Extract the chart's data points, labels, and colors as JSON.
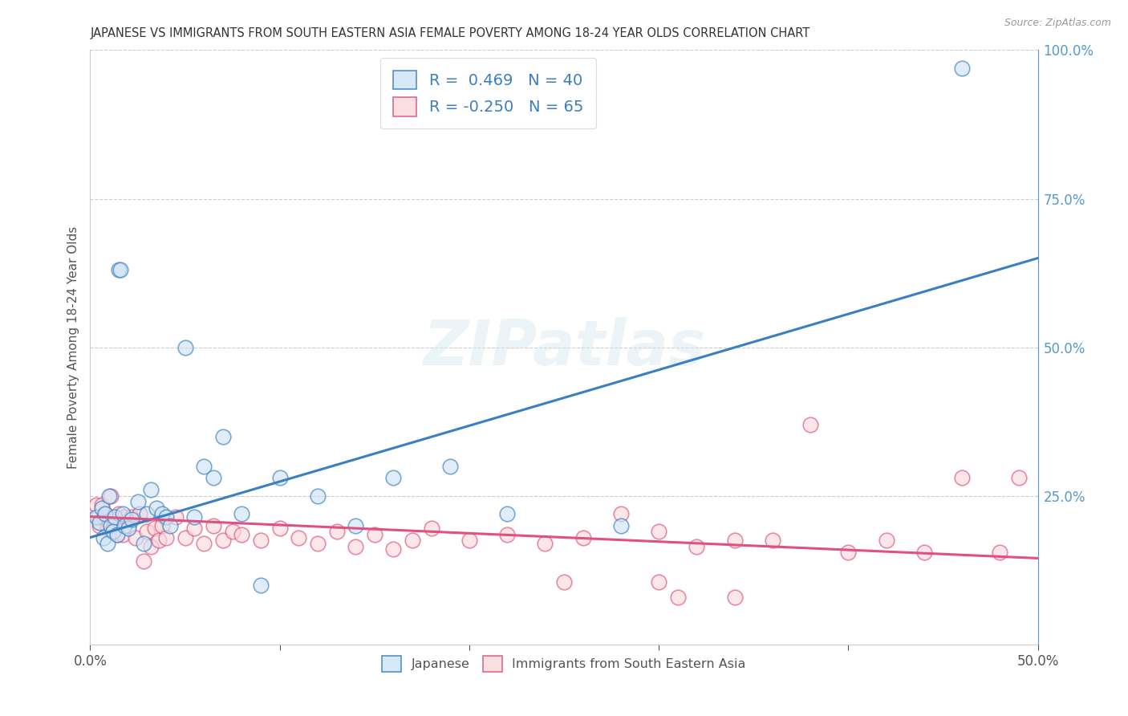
{
  "title": "JAPANESE VS IMMIGRANTS FROM SOUTH EASTERN ASIA FEMALE POVERTY AMONG 18-24 YEAR OLDS CORRELATION CHART",
  "source": "Source: ZipAtlas.com",
  "ylabel": "Female Poverty Among 18-24 Year Olds",
  "xlim": [
    0.0,
    0.5
  ],
  "ylim": [
    0.0,
    1.0
  ],
  "xtick_positions": [
    0.0,
    0.1,
    0.2,
    0.3,
    0.4,
    0.5
  ],
  "xticklabels": [
    "0.0%",
    "",
    "",
    "",
    "",
    "50.0%"
  ],
  "yticks_right": [
    0.25,
    0.5,
    0.75,
    1.0
  ],
  "ytick_right_labels": [
    "25.0%",
    "50.0%",
    "75.0%",
    "100.0%"
  ],
  "legend1_R": "0.469",
  "legend1_N": "40",
  "legend2_R": "-0.250",
  "legend2_N": "65",
  "blue_scatter_color": "#a8c8e8",
  "pink_scatter_color": "#f4a0b8",
  "blue_line_color": "#3a7fc1",
  "pink_line_color": "#e05080",
  "right_axis_color": "#5599cc",
  "grid_color": "#cccccc",
  "background_color": "#ffffff",
  "blue_line_x0": 0.0,
  "blue_line_y0": 0.18,
  "blue_line_x1": 0.5,
  "blue_line_y1": 0.65,
  "pink_line_x0": 0.0,
  "pink_line_y0": 0.215,
  "pink_line_x1": 0.5,
  "pink_line_y1": 0.145,
  "japanese_x": [
    0.003,
    0.005,
    0.006,
    0.007,
    0.008,
    0.009,
    0.01,
    0.011,
    0.012,
    0.013,
    0.014,
    0.015,
    0.016,
    0.017,
    0.018,
    0.02,
    0.022,
    0.025,
    0.028,
    0.03,
    0.032,
    0.035,
    0.038,
    0.04,
    0.042,
    0.05,
    0.055,
    0.06,
    0.065,
    0.07,
    0.08,
    0.09,
    0.1,
    0.12,
    0.14,
    0.16,
    0.19,
    0.22,
    0.28,
    0.46
  ],
  "japanese_y": [
    0.215,
    0.205,
    0.23,
    0.18,
    0.22,
    0.17,
    0.25,
    0.2,
    0.19,
    0.215,
    0.185,
    0.63,
    0.63,
    0.22,
    0.2,
    0.195,
    0.21,
    0.24,
    0.17,
    0.22,
    0.26,
    0.23,
    0.22,
    0.215,
    0.2,
    0.5,
    0.215,
    0.3,
    0.28,
    0.35,
    0.22,
    0.1,
    0.28,
    0.25,
    0.2,
    0.28,
    0.3,
    0.22,
    0.2,
    0.97
  ],
  "sea_x": [
    0.003,
    0.004,
    0.005,
    0.006,
    0.007,
    0.008,
    0.009,
    0.01,
    0.011,
    0.012,
    0.013,
    0.014,
    0.015,
    0.016,
    0.017,
    0.018,
    0.02,
    0.022,
    0.024,
    0.026,
    0.028,
    0.03,
    0.032,
    0.034,
    0.036,
    0.038,
    0.04,
    0.045,
    0.05,
    0.055,
    0.06,
    0.065,
    0.07,
    0.075,
    0.08,
    0.09,
    0.1,
    0.11,
    0.12,
    0.13,
    0.14,
    0.15,
    0.16,
    0.17,
    0.18,
    0.2,
    0.22,
    0.24,
    0.26,
    0.28,
    0.3,
    0.31,
    0.32,
    0.34,
    0.36,
    0.38,
    0.4,
    0.42,
    0.44,
    0.46,
    0.48,
    0.34,
    0.25,
    0.3,
    0.49
  ],
  "sea_y": [
    0.235,
    0.215,
    0.2,
    0.235,
    0.215,
    0.22,
    0.195,
    0.205,
    0.25,
    0.19,
    0.21,
    0.185,
    0.22,
    0.205,
    0.185,
    0.215,
    0.2,
    0.215,
    0.18,
    0.22,
    0.14,
    0.19,
    0.165,
    0.195,
    0.175,
    0.2,
    0.18,
    0.215,
    0.18,
    0.195,
    0.17,
    0.2,
    0.175,
    0.19,
    0.185,
    0.175,
    0.195,
    0.18,
    0.17,
    0.19,
    0.165,
    0.185,
    0.16,
    0.175,
    0.195,
    0.175,
    0.185,
    0.17,
    0.18,
    0.22,
    0.19,
    0.08,
    0.165,
    0.08,
    0.175,
    0.37,
    0.155,
    0.175,
    0.155,
    0.28,
    0.155,
    0.175,
    0.105,
    0.105,
    0.28
  ]
}
